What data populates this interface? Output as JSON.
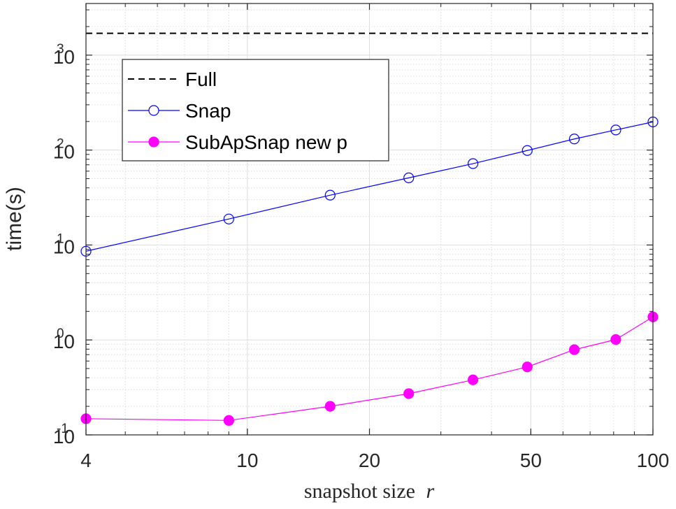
{
  "chart_data": {
    "type": "line",
    "xscale": "log",
    "yscale": "log",
    "xlim": [
      4,
      100
    ],
    "ylim": [
      0.1,
      3500
    ],
    "grid": true,
    "xlabel": "snapshot size",
    "xlabel_var": "r",
    "ylabel": "time(s)",
    "x_ticks": [
      {
        "value": 4,
        "label": "4"
      },
      {
        "value": 10,
        "label": "10"
      },
      {
        "value": 20,
        "label": "20"
      },
      {
        "value": 50,
        "label": "50"
      },
      {
        "value": 100,
        "label": "100"
      }
    ],
    "y_ticks": [
      {
        "value": 0.1,
        "base": "10",
        "exp": "-1"
      },
      {
        "value": 1,
        "base": "10",
        "exp": "0"
      },
      {
        "value": 10,
        "base": "10",
        "exp": "1"
      },
      {
        "value": 100,
        "base": "10",
        "exp": "2"
      },
      {
        "value": 1000,
        "base": "10",
        "exp": "3"
      }
    ],
    "legend_position": "top-left",
    "series": [
      {
        "name": "Full",
        "style": "dashed",
        "marker": "none",
        "color": "#000000",
        "x": [
          4,
          100
        ],
        "y": [
          1700,
          1700
        ]
      },
      {
        "name": "Snap",
        "style": "solid",
        "marker": "open-circle",
        "color": "#0000ff",
        "x": [
          4,
          9,
          16,
          25,
          36,
          49,
          64,
          81,
          100
        ],
        "y": [
          8.6,
          18.8,
          33.5,
          51,
          72,
          99,
          131,
          163,
          198
        ]
      },
      {
        "name": "SubApSnap new p",
        "style": "solid",
        "marker": "filled-circle",
        "color": "#ff00ff",
        "x": [
          4,
          9,
          16,
          25,
          36,
          49,
          64,
          81,
          100
        ],
        "y": [
          0.148,
          0.142,
          0.2,
          0.272,
          0.38,
          0.52,
          0.79,
          1.01,
          1.75
        ]
      }
    ]
  }
}
